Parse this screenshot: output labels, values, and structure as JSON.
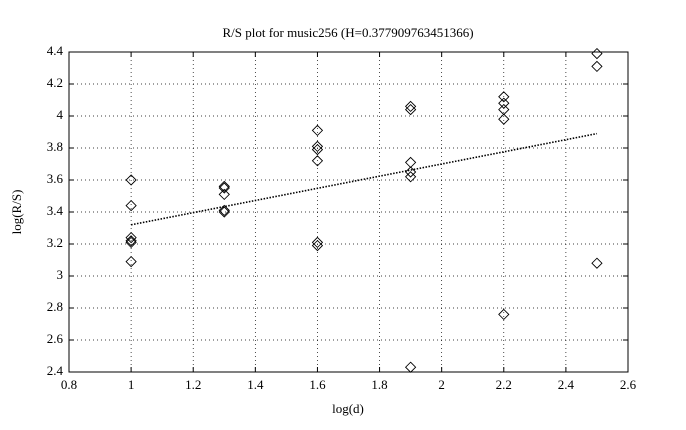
{
  "chart_data": {
    "type": "scatter",
    "title": "R/S plot for music256 (H=0.377909763451366)",
    "x_label": "log(d)",
    "y_label": "log(R/S)",
    "series": [
      {
        "marker": "diamond",
        "color": "#000000",
        "x": [
          1,
          1,
          1,
          1,
          1,
          1,
          1.3,
          1.3,
          1.3,
          1.3,
          1.3,
          1.6,
          1.6,
          1.6,
          1.6,
          1.6,
          1.6,
          1.9,
          1.9,
          1.9,
          1.9,
          1.9,
          1.9,
          2.2,
          2.2,
          2.2,
          2.2,
          2.2,
          2.5,
          2.5,
          2.5
        ],
        "values": [
          3.6,
          3.44,
          3.24,
          3.22,
          3.21,
          3.09,
          3.56,
          3.55,
          3.51,
          3.41,
          3.4,
          3.91,
          3.81,
          3.79,
          3.72,
          3.21,
          3.19,
          4.06,
          4.04,
          3.71,
          3.65,
          3.62,
          2.43,
          4.12,
          4.08,
          4.04,
          3.98,
          2.76,
          4.39,
          4.31,
          3.08
        ]
      },
      {
        "marker": "none",
        "line_style": "dotted",
        "color": "#000000",
        "x": [
          1,
          2.5
        ],
        "values": [
          3.32,
          3.89
        ]
      }
    ],
    "xlim": [
      0.8,
      2.6
    ],
    "xticks": [
      0.8,
      1,
      1.2,
      1.4,
      1.6,
      1.8,
      2,
      2.2,
      2.4,
      2.6
    ],
    "ylim": [
      2.4,
      4.4
    ],
    "yticks": [
      2.4,
      2.6,
      2.8,
      3,
      3.2,
      3.4,
      3.6,
      3.8,
      4,
      4.2,
      4.4
    ],
    "grid": true
  }
}
